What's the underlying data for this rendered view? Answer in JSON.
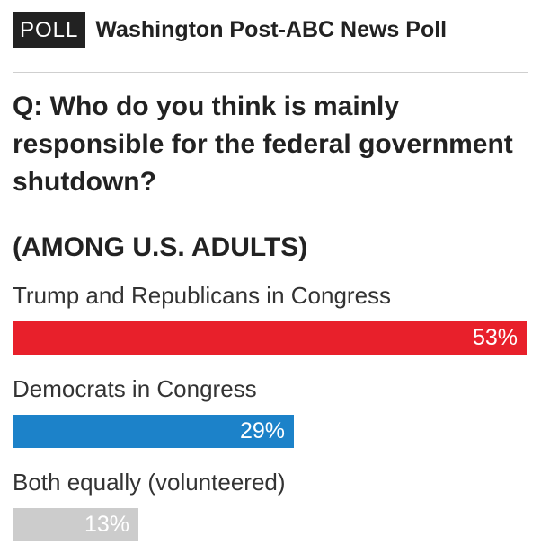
{
  "header": {
    "tag": "POLL",
    "title": "Washington Post-ABC News Poll"
  },
  "question": "Q: Who do you think is mainly responsible for the federal government shutdown?",
  "subhead": "(AMONG U.S. ADULTS)",
  "colors": {
    "bar_1": "#e8202b",
    "bar_2": "#1c82c9",
    "bar_3": "#cccccc",
    "tag_background": "#222222"
  },
  "chart_data": {
    "type": "bar",
    "orientation": "horizontal",
    "title": "Q: Who do you think is mainly responsible for the federal government shutdown?",
    "subtitle": "(AMONG U.S. ADULTS)",
    "categories": [
      "Trump and Republicans in Congress",
      "Democrats in Congress",
      "Both equally (volunteered)"
    ],
    "values": [
      53,
      29,
      13
    ],
    "value_labels": [
      "53%",
      "29%",
      "13%"
    ],
    "unit": "%",
    "xlim": [
      0,
      53
    ],
    "grid": false,
    "legend": "none"
  }
}
